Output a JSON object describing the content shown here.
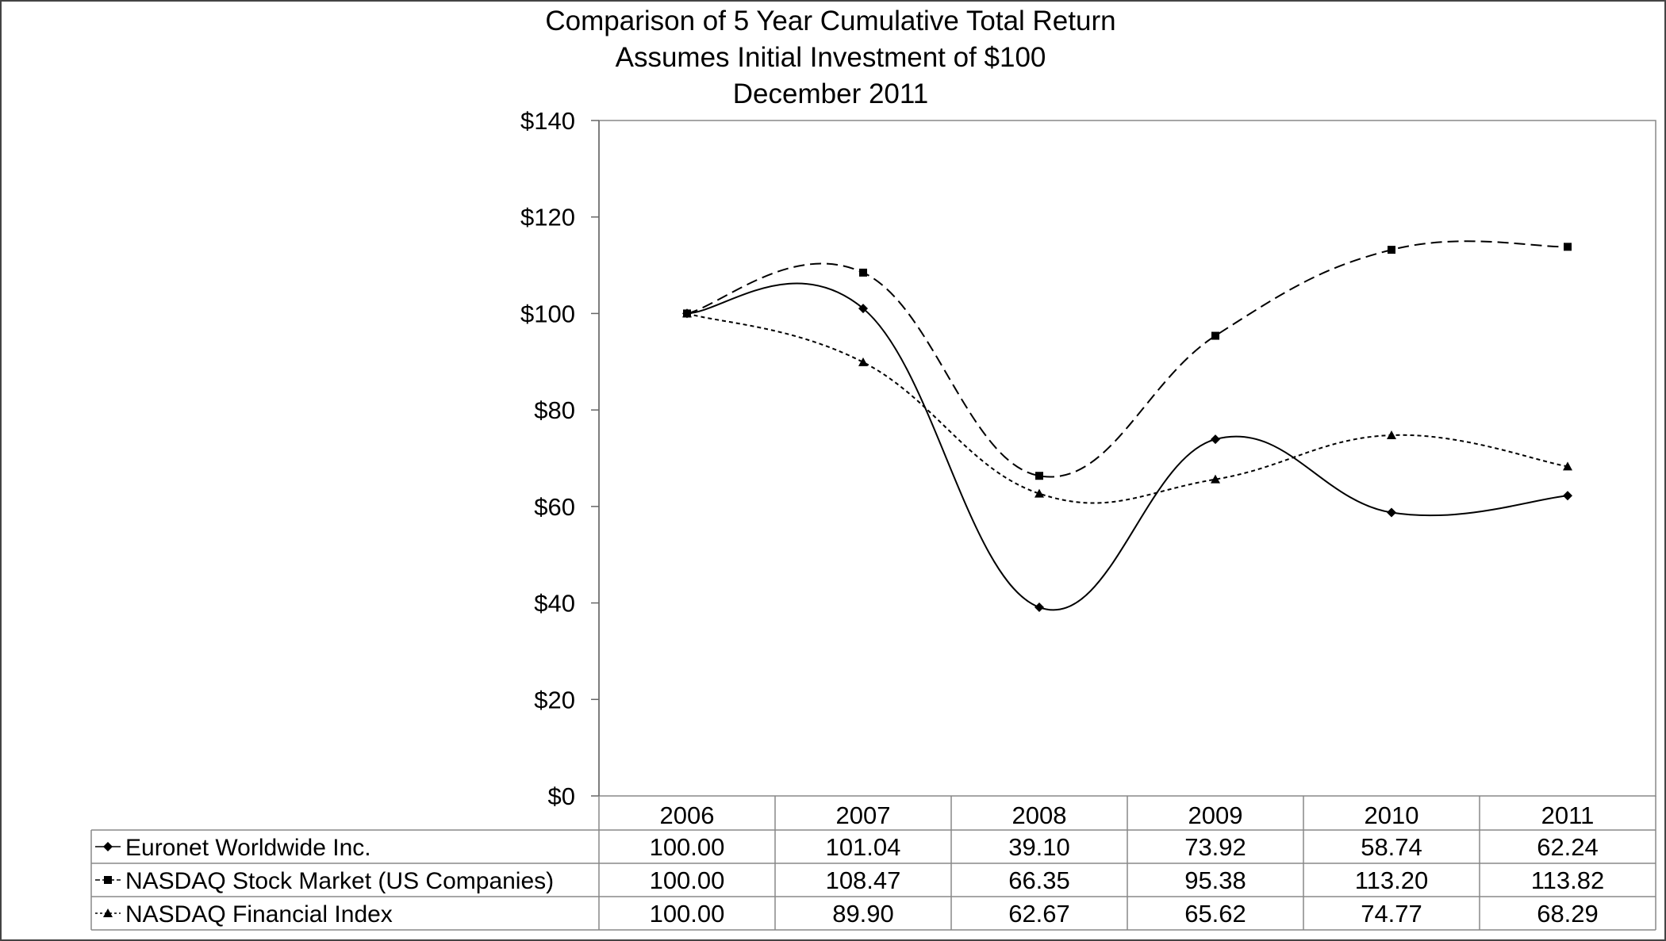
{
  "chart_data": {
    "type": "line",
    "title_lines": [
      "Comparison of 5 Year Cumulative Total Return",
      "Assumes Initial Investment of $100",
      "December 2011"
    ],
    "xlabel": "",
    "ylabel": "",
    "categories": [
      "2006",
      "2007",
      "2008",
      "2009",
      "2010",
      "2011"
    ],
    "ylim": [
      0,
      140
    ],
    "y_ticks": [
      0,
      20,
      40,
      60,
      80,
      100,
      120,
      140
    ],
    "y_tick_labels": [
      "$0",
      "$20",
      "$40",
      "$60",
      "$80",
      "$100",
      "$120",
      "$140"
    ],
    "grid": false,
    "legend": "data-table-below",
    "series": [
      {
        "name": "Euronet Worldwide Inc.",
        "values": [
          100.0,
          101.04,
          39.1,
          73.92,
          58.74,
          62.24
        ],
        "labels": [
          "100.00",
          "101.04",
          "39.10",
          "73.92",
          "58.74",
          "62.24"
        ],
        "marker": "diamond",
        "line_style": "solid"
      },
      {
        "name": "NASDAQ Stock Market (US Companies)",
        "values": [
          100.0,
          108.47,
          66.35,
          95.38,
          113.2,
          113.82
        ],
        "labels": [
          "100.00",
          "108.47",
          "66.35",
          "95.38",
          "113.20",
          "113.82"
        ],
        "marker": "square",
        "line_style": "dashed"
      },
      {
        "name": "NASDAQ Financial Index",
        "values": [
          100.0,
          89.9,
          62.67,
          65.62,
          74.77,
          68.29
        ],
        "labels": [
          "100.00",
          "89.90",
          "62.67",
          "65.62",
          "74.77",
          "68.29"
        ],
        "marker": "triangle",
        "line_style": "dotted"
      }
    ]
  }
}
